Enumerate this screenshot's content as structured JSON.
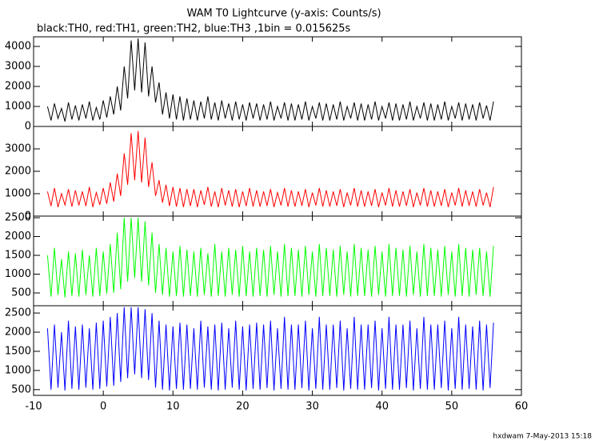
{
  "chart_data": {
    "type": "line",
    "title": "WAM T0 Lightcurve (y-axis: Counts/s)",
    "subtitle": "black:TH0, red:TH1, green:TH2, blue:TH3 ,1bin = 0.015625s",
    "footer": "hxdwam  7-May-2013 15:18",
    "xlim": [
      -10,
      60
    ],
    "xticks": [
      -10,
      0,
      10,
      20,
      30,
      40,
      50,
      60
    ],
    "x": [
      -8,
      -7.5,
      -7,
      -6.5,
      -6,
      -5.5,
      -5,
      -4.5,
      -4,
      -3.5,
      -3,
      -2.5,
      -2,
      -1.5,
      -1,
      -0.5,
      0,
      0.5,
      1,
      1.5,
      2,
      2.5,
      3,
      3.5,
      4,
      4.5,
      5,
      5.5,
      6,
      6.5,
      7,
      7.5,
      8,
      8.5,
      9,
      9.5,
      10,
      10.5,
      11,
      11.5,
      12,
      12.5,
      13,
      13.5,
      14,
      14.5,
      15,
      15.5,
      16,
      16.5,
      17,
      17.5,
      18,
      18.5,
      19,
      19.5,
      20,
      20.5,
      21,
      21.5,
      22,
      22.5,
      23,
      23.5,
      24,
      24.5,
      25,
      25.5,
      26,
      26.5,
      27,
      27.5,
      28,
      28.5,
      29,
      29.5,
      30,
      30.5,
      31,
      31.5,
      32,
      32.5,
      33,
      33.5,
      34,
      34.5,
      35,
      35.5,
      36,
      36.5,
      37,
      37.5,
      38,
      38.5,
      39,
      39.5,
      40,
      40.5,
      41,
      41.5,
      42,
      42.5,
      43,
      43.5,
      44,
      44.5,
      45,
      45.5,
      46,
      46.5,
      47,
      47.5,
      48,
      48.5,
      49,
      49.5,
      50,
      50.5,
      51,
      51.5,
      52,
      52.5,
      53,
      53.5,
      54,
      54.5,
      55,
      55.5,
      56
    ],
    "panels": [
      {
        "ylim": [
          0,
          4480
        ],
        "yticks": [
          0,
          1000,
          2000,
          3000,
          4000
        ],
        "series": [
          {
            "name": "TH0",
            "color": "#000000",
            "values": [
              1000,
              300,
              1150,
              400,
              900,
              250,
              1200,
              350,
              1050,
              300,
              1100,
              400,
              1250,
              300,
              950,
              350,
              1300,
              450,
              1500,
              600,
              2000,
              800,
              3000,
              1400,
              4300,
              1800,
              4400,
              1700,
              4200,
              1500,
              3000,
              1200,
              2200,
              600,
              1700,
              400,
              1600,
              350,
              1500,
              300,
              1400,
              350,
              1300,
              300,
              1250,
              400,
              1500,
              350,
              1200,
              300,
              1300,
              400,
              1150,
              300,
              1250,
              350,
              1100,
              300,
              1200,
              400,
              1150,
              300,
              1100,
              350,
              1250,
              300,
              1000,
              400,
              1200,
              300,
              1150,
              300,
              1100,
              350,
              1250,
              300,
              1000,
              400,
              1200,
              300,
              1150,
              300,
              1100,
              350,
              1250,
              300,
              1000,
              400,
              1200,
              300,
              1150,
              300,
              1100,
              350,
              1250,
              300,
              1000,
              400,
              1200,
              300,
              1150,
              300,
              1100,
              350,
              1250,
              300,
              1000,
              400,
              1200,
              300,
              1150,
              300,
              1100,
              350,
              1250,
              300,
              1000,
              400,
              1200,
              300,
              1150,
              350,
              1100,
              300,
              1200,
              400,
              1050,
              300,
              1250
            ]
          }
        ]
      },
      {
        "ylim": [
          0,
          4000
        ],
        "yticks": [
          0,
          1000,
          2000,
          3000
        ],
        "series": [
          {
            "name": "TH1",
            "color": "#ff0000",
            "values": [
              1100,
              450,
              1250,
              400,
              1000,
              500,
              1200,
              420,
              1150,
              480,
              1100,
              450,
              1300,
              400,
              1050,
              500,
              1250,
              550,
              1500,
              650,
              1900,
              900,
              2800,
              1400,
              3700,
              1600,
              3800,
              1500,
              3500,
              1300,
              2400,
              900,
              1600,
              600,
              1400,
              450,
              1300,
              420,
              1250,
              400,
              1200,
              450,
              1200,
              400,
              1150,
              500,
              1300,
              420,
              1100,
              400,
              1250,
              480,
              1150,
              420,
              1200,
              400,
              1100,
              450,
              1250,
              420,
              1150,
              420,
              1100,
              460,
              1200,
              400,
              1050,
              480,
              1250,
              420,
              1150,
              420,
              1100,
              460,
              1200,
              400,
              1050,
              480,
              1250,
              420,
              1150,
              420,
              1100,
              460,
              1200,
              400,
              1050,
              480,
              1250,
              420,
              1150,
              420,
              1100,
              460,
              1200,
              400,
              1050,
              480,
              1250,
              420,
              1150,
              420,
              1100,
              460,
              1200,
              400,
              1050,
              480,
              1250,
              420,
              1150,
              420,
              1100,
              460,
              1200,
              400,
              1050,
              480,
              1250,
              420,
              1150,
              460,
              1100,
              420,
              1200,
              480,
              1050,
              400,
              1300
            ]
          }
        ]
      },
      {
        "ylim": [
          160,
          2543
        ],
        "yticks": [
          500,
          1000,
          1500,
          2000,
          2500
        ],
        "series": [
          {
            "name": "TH2",
            "color": "#00ff00",
            "values": [
              1500,
              400,
              1700,
              450,
              1400,
              380,
              1600,
              420,
              1550,
              400,
              1650,
              450,
              1500,
              400,
              1700,
              420,
              1600,
              480,
              1800,
              500,
              2100,
              600,
              2500,
              800,
              2500,
              900,
              2500,
              800,
              2400,
              700,
              2100,
              500,
              1800,
              450,
              1700,
              400,
              1600,
              420,
              1750,
              400,
              1650,
              420,
              1600,
              400,
              1700,
              450,
              1550,
              400,
              1800,
              420,
              1600,
              400,
              1700,
              450,
              1650,
              400,
              1750,
              420,
              1600,
              400,
              1700,
              420,
              1650,
              400,
              1750,
              450,
              1600,
              400,
              1800,
              420,
              1700,
              420,
              1650,
              400,
              1750,
              450,
              1600,
              400,
              1800,
              420,
              1700,
              420,
              1650,
              400,
              1750,
              450,
              1600,
              400,
              1800,
              420,
              1700,
              420,
              1650,
              400,
              1750,
              450,
              1600,
              400,
              1800,
              420,
              1700,
              420,
              1650,
              400,
              1750,
              450,
              1600,
              400,
              1800,
              420,
              1700,
              420,
              1650,
              400,
              1750,
              450,
              1600,
              400,
              1800,
              420,
              1700,
              400,
              1650,
              450,
              1700,
              420,
              1600,
              400,
              1750
            ]
          }
        ]
      },
      {
        "ylim": [
          350,
          2690
        ],
        "yticks": [
          500,
          1000,
          1500,
          2000,
          2500
        ],
        "series": [
          {
            "name": "TH3",
            "color": "#0000ff",
            "values": [
              2100,
              500,
              2200,
              550,
              2000,
              480,
              2300,
              520,
              2150,
              500,
              2200,
              550,
              2100,
              500,
              2250,
              520,
              2300,
              580,
              2400,
              600,
              2500,
              700,
              2650,
              800,
              2650,
              900,
              2650,
              800,
              2600,
              750,
              2500,
              550,
              2300,
              500,
              2200,
              480,
              2150,
              520,
              2250,
              500,
              2200,
              520,
              2100,
              500,
              2300,
              550,
              2150,
              500,
              2200,
              480,
              2250,
              500,
              2100,
              550,
              2300,
              500,
              2150,
              480,
              2200,
              520,
              2250,
              500,
              2200,
              540,
              2300,
              480,
              2100,
              520,
              2400,
              500,
              2200,
              500,
              2200,
              540,
              2300,
              480,
              2100,
              520,
              2400,
              500,
              2200,
              500,
              2200,
              540,
              2300,
              480,
              2100,
              520,
              2400,
              500,
              2200,
              500,
              2200,
              540,
              2300,
              480,
              2100,
              520,
              2400,
              500,
              2200,
              500,
              2200,
              540,
              2300,
              480,
              2100,
              520,
              2400,
              500,
              2200,
              500,
              2200,
              540,
              2300,
              480,
              2100,
              520,
              2400,
              500,
              2200,
              520,
              2150,
              500,
              2300,
              480,
              2200,
              540,
              2250
            ]
          }
        ]
      }
    ]
  }
}
